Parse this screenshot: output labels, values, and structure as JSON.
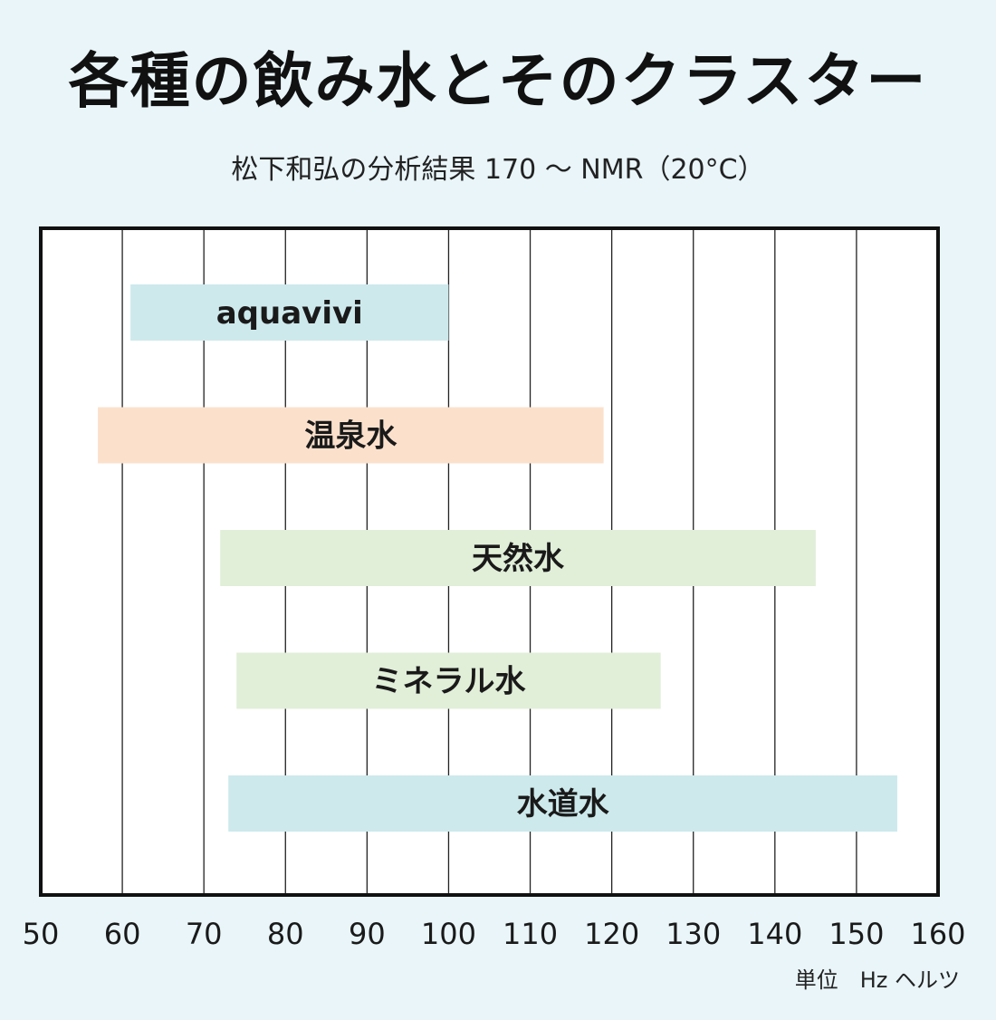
{
  "title": "各種の飲み水とそのクラスター",
  "subtitle": "松下和弘の分析結果 170 〜 NMR（20°C）",
  "unit": "単位　Hz ヘルツ",
  "chart_data": {
    "type": "bar",
    "orientation": "horizontal-range",
    "xlim": [
      50,
      160
    ],
    "x_ticks": [
      50,
      60,
      70,
      80,
      90,
      100,
      110,
      120,
      130,
      140,
      150,
      160
    ],
    "tick_labels": [
      "50",
      "60",
      "70",
      "80",
      "90",
      "100",
      "110",
      "120",
      "130",
      "140",
      "150",
      "160"
    ],
    "grid": true,
    "bars": [
      {
        "label": "aquavivi",
        "start": 61,
        "end": 100,
        "color": "#cde9ec"
      },
      {
        "label": "温泉水",
        "start": 57,
        "end": 119,
        "color": "#fbe1cc"
      },
      {
        "label": "天然水",
        "start": 72,
        "end": 145,
        "color": "#e1eed8"
      },
      {
        "label": "ミネラル水",
        "start": 74,
        "end": 126,
        "color": "#e1eed8"
      },
      {
        "label": "水道水",
        "start": 73,
        "end": 155,
        "color": "#cde9ec"
      }
    ]
  }
}
